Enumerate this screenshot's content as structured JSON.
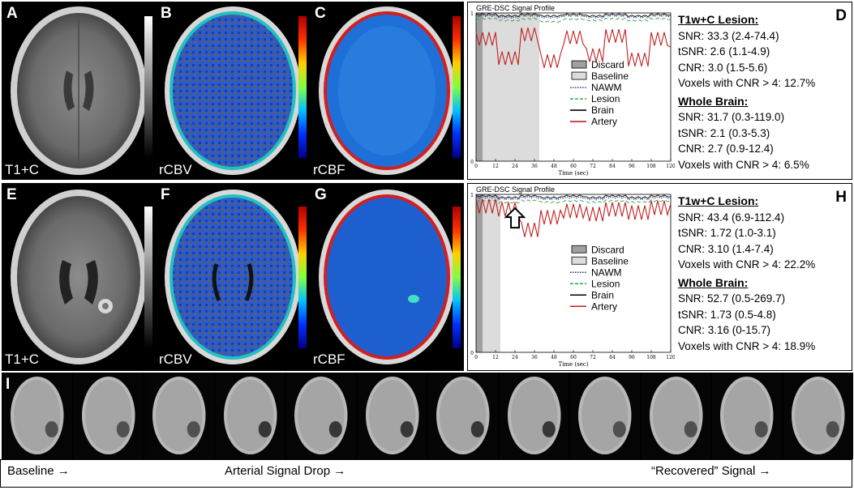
{
  "row1": {
    "panels": [
      {
        "letter": "A",
        "label": "T1+C"
      },
      {
        "letter": "B",
        "label": "rCBV"
      },
      {
        "letter": "C",
        "label": "rCBF"
      }
    ],
    "chart_letter": "D",
    "stats": {
      "lesion_header": "T1w+C Lesion:",
      "lesion": [
        "SNR: 33.3 (2.4-74.4)",
        "tSNR: 2.6 (1.1-4.9)",
        "CNR: 3.0 (1.5-5.6)",
        "Voxels with CNR > 4: 12.7%"
      ],
      "brain_header": "Whole Brain:",
      "brain": [
        "SNR: 31.7 (0.3-119.0)",
        "tSNR: 2.1 (0.3-5.3)",
        "CNR: 2.7 (0.9-12.4)",
        "Voxels with CNR > 4: 6.5%"
      ]
    }
  },
  "row2": {
    "panels": [
      {
        "letter": "E",
        "label": "T1+C"
      },
      {
        "letter": "F",
        "label": "rCBV"
      },
      {
        "letter": "G",
        "label": "rCBF"
      }
    ],
    "chart_letter": "H",
    "stats": {
      "lesion_header": "T1w+C Lesion:",
      "lesion": [
        "SNR: 43.4 (6.9-112.4)",
        "tSNR: 1.72 (1.0-3.1)",
        "CNR: 3.10 (1.4-7.4)",
        "Voxels with CNR > 4: 22.2%"
      ],
      "brain_header": "Whole Brain:",
      "brain": [
        "SNR: 52.7 (0.5-269.7)",
        "tSNR: 1.73 (0.5-4.8)",
        "CNR: 3.16 (0-15.7)",
        "Voxels with CNR > 4: 18.9%"
      ]
    }
  },
  "row3": {
    "letter": "I",
    "thumb_count": 12,
    "captions": [
      "Baseline →",
      "Arterial Signal Drop →",
      "“Recovered” Signal →"
    ]
  },
  "chart_data": [
    {
      "type": "line",
      "title": "GRE-DSC Signal Profile",
      "xlabel": "Time (sec)",
      "ylabel": "",
      "xlim": [
        0,
        120
      ],
      "ylim": [
        0,
        1
      ],
      "x_ticks": [
        "0",
        "12",
        "24",
        "36",
        "48",
        "60",
        "72",
        "84",
        "96",
        "108",
        "120"
      ],
      "y_ticks": [
        "0",
        "1"
      ],
      "shaded": [
        {
          "name": "Discard",
          "range": [
            0,
            4
          ]
        },
        {
          "name": "Baseline",
          "range": [
            4,
            39
          ]
        }
      ],
      "legend": [
        "Discard",
        "Baseline",
        "NAWM",
        "Lesion",
        "Brain",
        "Artery"
      ],
      "legend_position": "right",
      "series": [
        {
          "name": "NAWM",
          "values": [
            0.98,
            0.97,
            0.98,
            0.97,
            0.98,
            0.97,
            0.98,
            0.97,
            0.98,
            0.97
          ]
        },
        {
          "name": "Lesion",
          "values": [
            0.96,
            0.95,
            0.96,
            0.94,
            0.96,
            0.95,
            0.96,
            0.95,
            0.96,
            0.95
          ]
        },
        {
          "name": "Brain",
          "values": [
            0.99,
            0.98,
            0.99,
            0.98,
            0.99,
            0.98,
            0.99,
            0.98,
            0.99,
            0.98
          ]
        },
        {
          "name": "Artery",
          "values": [
            0.85,
            0.72,
            0.88,
            0.7,
            0.86,
            0.74,
            0.87,
            0.71,
            0.85,
            0.75
          ]
        }
      ]
    },
    {
      "type": "line",
      "title": "GRE-DSC Signal Profile",
      "xlabel": "Time (sec)",
      "ylabel": "",
      "xlim": [
        0,
        120
      ],
      "ylim": [
        0,
        1
      ],
      "x_ticks": [
        "0",
        "12",
        "24",
        "36",
        "48",
        "60",
        "72",
        "84",
        "96",
        "108",
        "120"
      ],
      "y_ticks": [
        "0",
        "1"
      ],
      "shaded": [
        {
          "name": "Discard",
          "range": [
            0,
            4
          ]
        },
        {
          "name": "Baseline",
          "range": [
            4,
            15
          ]
        }
      ],
      "legend": [
        "Discard",
        "Baseline",
        "NAWM",
        "Lesion",
        "Brain",
        "Artery"
      ],
      "legend_position": "right",
      "series": [
        {
          "name": "NAWM",
          "values": [
            0.98,
            0.97,
            0.98,
            0.97,
            0.98,
            0.97,
            0.98,
            0.97,
            0.98,
            0.97
          ]
        },
        {
          "name": "Lesion",
          "values": [
            0.96,
            0.95,
            0.96,
            0.95,
            0.96,
            0.95,
            0.96,
            0.95,
            0.96,
            0.95
          ]
        },
        {
          "name": "Brain",
          "values": [
            0.99,
            0.98,
            0.99,
            0.98,
            0.99,
            0.98,
            0.99,
            0.98,
            0.99,
            0.98
          ]
        },
        {
          "name": "Artery",
          "values": [
            0.95,
            0.93,
            0.8,
            0.88,
            0.92,
            0.9,
            0.93,
            0.91,
            0.94,
            0.92
          ]
        }
      ]
    }
  ]
}
